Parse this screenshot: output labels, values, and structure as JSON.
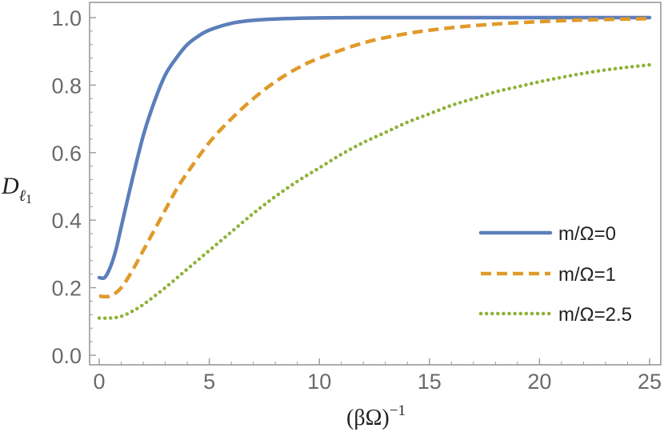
{
  "chart_data": {
    "type": "line",
    "xlabel_main": "(βΩ)",
    "xlabel_sup": "−1",
    "ylabel_main": "D",
    "ylabel_sub": "ℓ",
    "ylabel_subsub": "1",
    "xlim": [
      0,
      25
    ],
    "ylim": [
      0,
      1.0
    ],
    "x_ticks": [
      "0",
      "5",
      "10",
      "15",
      "20",
      "25"
    ],
    "x_tick_values": [
      0,
      5,
      10,
      15,
      20,
      25
    ],
    "y_ticks": [
      "0.0",
      "0.2",
      "0.4",
      "0.6",
      "0.8",
      "1.0"
    ],
    "y_tick_values": [
      0,
      0.2,
      0.4,
      0.6,
      0.8,
      1.0
    ],
    "grid": false,
    "legend_position": "lower-right",
    "series": [
      {
        "name": "m/Ω=0",
        "color": "#5b7fba",
        "style": "solid",
        "x": [
          0,
          0.25,
          0.5,
          0.75,
          1,
          1.5,
          2,
          2.5,
          3,
          3.5,
          4,
          4.5,
          5,
          6,
          7,
          8,
          9,
          10,
          12,
          15,
          20,
          25
        ],
        "y": [
          0.23,
          0.23,
          0.26,
          0.31,
          0.38,
          0.52,
          0.65,
          0.75,
          0.83,
          0.88,
          0.92,
          0.945,
          0.963,
          0.983,
          0.992,
          0.996,
          0.998,
          0.999,
          1.0,
          1.0,
          1.0,
          1.0
        ]
      },
      {
        "name": "m/Ω=1",
        "color": "#e09a2a",
        "style": "dashed",
        "x": [
          0,
          0.5,
          1,
          1.5,
          2,
          2.5,
          3,
          3.5,
          4,
          5,
          6,
          7,
          8,
          9,
          10,
          12,
          14,
          16,
          18,
          20,
          22,
          25
        ],
        "y": [
          0.175,
          0.175,
          0.2,
          0.25,
          0.31,
          0.37,
          0.43,
          0.49,
          0.54,
          0.63,
          0.7,
          0.76,
          0.81,
          0.85,
          0.88,
          0.925,
          0.953,
          0.97,
          0.981,
          0.988,
          0.993,
          0.997
        ]
      },
      {
        "name": "m/Ω=2.5",
        "color": "#8fb23a",
        "style": "dotted",
        "x": [
          0,
          0.5,
          1,
          1.5,
          2,
          3,
          4,
          5,
          6,
          7,
          8,
          9,
          10,
          11,
          12,
          13,
          14,
          15,
          16,
          17,
          18,
          19,
          20,
          21,
          22,
          23,
          24,
          25
        ],
        "y": [
          0.11,
          0.11,
          0.115,
          0.13,
          0.15,
          0.2,
          0.255,
          0.31,
          0.365,
          0.42,
          0.47,
          0.515,
          0.555,
          0.595,
          0.63,
          0.66,
          0.69,
          0.715,
          0.74,
          0.76,
          0.78,
          0.795,
          0.81,
          0.823,
          0.835,
          0.845,
          0.853,
          0.86
        ]
      }
    ]
  }
}
